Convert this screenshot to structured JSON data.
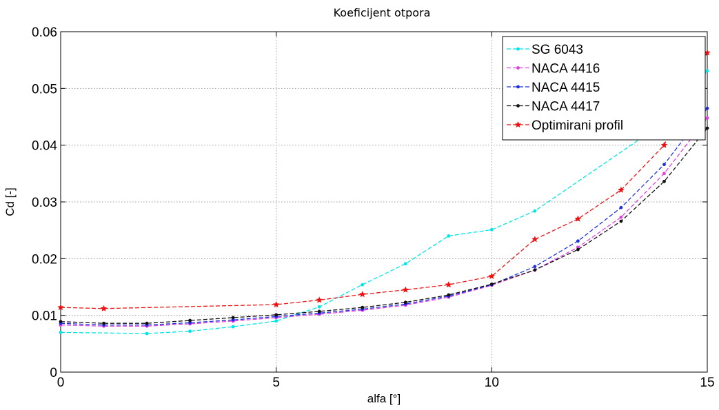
{
  "chart_data": {
    "type": "line",
    "title": "Koeficijent otpora",
    "xlabel": "alfa [°]",
    "ylabel": "Cd [-]",
    "xlim": [
      0,
      15
    ],
    "ylim": [
      0,
      0.06
    ],
    "xticks": [
      0,
      5,
      10,
      15
    ],
    "xtick_labels": [
      "0",
      "5",
      "10",
      "15"
    ],
    "yticks": [
      0,
      0.01,
      0.02,
      0.03,
      0.04,
      0.05,
      0.06
    ],
    "ytick_labels": [
      "0",
      "0.01",
      "0.02",
      "0.03",
      "0.04",
      "0.05",
      "0.06"
    ],
    "grid": true,
    "legend_position": "top-right",
    "series": [
      {
        "name": "SG 6043",
        "color": "#00e5e5",
        "marker": "dot",
        "x": [
          0,
          2,
          3,
          4,
          5,
          6,
          7,
          8,
          9,
          10,
          11,
          14,
          15
        ],
        "y": [
          0.007,
          0.0068,
          0.0072,
          0.008,
          0.009,
          0.0115,
          0.0154,
          0.0191,
          0.024,
          0.0251,
          0.0284,
          0.044,
          0.0531
        ]
      },
      {
        "name": "NACA 4416",
        "color": "#e040e0",
        "marker": "dot",
        "x": [
          0,
          1,
          2,
          3,
          4,
          5,
          6,
          7,
          8,
          9,
          10,
          11,
          12,
          13,
          14,
          15
        ],
        "y": [
          0.0083,
          0.0081,
          0.0081,
          0.0085,
          0.009,
          0.0096,
          0.0102,
          0.0109,
          0.0118,
          0.0132,
          0.0153,
          0.018,
          0.022,
          0.0273,
          0.035,
          0.0448
        ]
      },
      {
        "name": "NACA 4415",
        "color": "#1f2fe0",
        "marker": "dot",
        "x": [
          0,
          1,
          2,
          3,
          4,
          5,
          6,
          7,
          8,
          9,
          10,
          11,
          12,
          13,
          14,
          15
        ],
        "y": [
          0.0086,
          0.0083,
          0.0083,
          0.0087,
          0.0092,
          0.0098,
          0.0104,
          0.0111,
          0.012,
          0.0134,
          0.0154,
          0.0186,
          0.0231,
          0.029,
          0.0366,
          0.0465
        ]
      },
      {
        "name": "NACA 4417",
        "color": "#111111",
        "marker": "dot",
        "x": [
          0,
          1,
          2,
          3,
          4,
          5,
          6,
          7,
          8,
          9,
          10,
          11,
          12,
          13,
          14,
          15
        ],
        "y": [
          0.0089,
          0.0086,
          0.0086,
          0.0091,
          0.0096,
          0.0101,
          0.0107,
          0.0114,
          0.0123,
          0.0136,
          0.0155,
          0.018,
          0.0216,
          0.0266,
          0.0336,
          0.043
        ]
      },
      {
        "name": "Optimirani profil",
        "color": "#ee1111",
        "marker": "star",
        "x": [
          0,
          1,
          5,
          6,
          7,
          8,
          9,
          10,
          11,
          12,
          13,
          14,
          15
        ],
        "y": [
          0.0114,
          0.0112,
          0.0119,
          0.0127,
          0.0137,
          0.0145,
          0.0154,
          0.0169,
          0.0234,
          0.027,
          0.0321,
          0.04,
          0.0563
        ]
      }
    ]
  }
}
